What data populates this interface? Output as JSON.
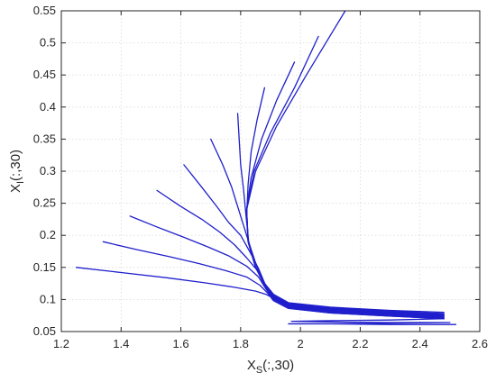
{
  "chart_data": {
    "type": "line",
    "xlabel": {
      "main": "X",
      "sub": "S",
      "suffix": "(:,30)"
    },
    "ylabel": {
      "main": "X",
      "sub": "I",
      "suffix": "(:,30)"
    },
    "xlim": [
      1.2,
      2.6
    ],
    "ylim": [
      0.05,
      0.55
    ],
    "xticks": [
      1.2,
      1.4,
      1.6,
      1.8,
      2,
      2.2,
      2.4,
      2.6
    ],
    "yticks": [
      0.05,
      0.1,
      0.15,
      0.2,
      0.25,
      0.3,
      0.35,
      0.4,
      0.45,
      0.5,
      0.55
    ],
    "xtick_labels": [
      "1.2",
      "1.4",
      "1.6",
      "1.8",
      "2",
      "2.2",
      "2.4",
      "2.6"
    ],
    "ytick_labels": [
      "0.05",
      "0.1",
      "0.15",
      "0.2",
      "0.25",
      "0.3",
      "0.35",
      "0.4",
      "0.45",
      "0.5",
      "0.55"
    ],
    "grid": true,
    "line_color": "#1f1fcc",
    "series": [
      {
        "x": [
          2.15,
          2.02,
          1.92,
          1.85,
          1.82,
          1.825,
          1.85,
          1.88,
          1.91,
          1.96,
          2.1,
          2.3,
          2.48
        ],
        "y": [
          0.55,
          0.45,
          0.37,
          0.3,
          0.24,
          0.19,
          0.15,
          0.125,
          0.108,
          0.095,
          0.088,
          0.083,
          0.08
        ]
      },
      {
        "x": [
          2.06,
          1.98,
          1.9,
          1.845,
          1.82,
          1.825,
          1.85,
          1.88,
          1.91,
          1.96,
          2.1,
          2.3,
          2.48
        ],
        "y": [
          0.51,
          0.43,
          0.36,
          0.3,
          0.24,
          0.19,
          0.15,
          0.125,
          0.107,
          0.094,
          0.087,
          0.082,
          0.078
        ]
      },
      {
        "x": [
          1.98,
          1.92,
          1.87,
          1.835,
          1.82,
          1.825,
          1.85,
          1.88,
          1.91,
          1.96,
          2.1,
          2.3,
          2.48
        ],
        "y": [
          0.47,
          0.41,
          0.35,
          0.29,
          0.24,
          0.19,
          0.15,
          0.124,
          0.106,
          0.093,
          0.086,
          0.081,
          0.077
        ]
      },
      {
        "x": [
          1.88,
          1.855,
          1.835,
          1.825,
          1.82,
          1.825,
          1.85,
          1.88,
          1.91,
          1.96,
          2.1,
          2.3,
          2.48
        ],
        "y": [
          0.43,
          0.38,
          0.33,
          0.28,
          0.23,
          0.19,
          0.15,
          0.123,
          0.105,
          0.092,
          0.085,
          0.08,
          0.076
        ]
      },
      {
        "x": [
          1.79,
          1.795,
          1.8,
          1.81,
          1.818,
          1.827,
          1.85,
          1.88,
          1.91,
          1.96,
          2.1,
          2.3,
          2.48
        ],
        "y": [
          0.39,
          0.35,
          0.31,
          0.27,
          0.23,
          0.19,
          0.15,
          0.122,
          0.104,
          0.091,
          0.084,
          0.079,
          0.075
        ]
      },
      {
        "x": [
          1.7,
          1.74,
          1.77,
          1.79,
          1.81,
          1.83,
          1.855,
          1.88,
          1.91,
          1.96,
          2.1,
          2.3,
          2.48
        ],
        "y": [
          0.35,
          0.31,
          0.275,
          0.245,
          0.215,
          0.185,
          0.15,
          0.121,
          0.103,
          0.09,
          0.083,
          0.078,
          0.074
        ]
      },
      {
        "x": [
          1.61,
          1.67,
          1.72,
          1.76,
          1.8,
          1.83,
          1.86,
          1.885,
          1.91,
          1.96,
          2.1,
          2.3,
          2.48
        ],
        "y": [
          0.31,
          0.275,
          0.245,
          0.22,
          0.2,
          0.175,
          0.148,
          0.12,
          0.102,
          0.089,
          0.082,
          0.077,
          0.073
        ]
      },
      {
        "x": [
          1.52,
          1.6,
          1.67,
          1.73,
          1.78,
          1.82,
          1.86,
          1.885,
          1.91,
          1.96,
          2.1,
          2.3,
          2.48
        ],
        "y": [
          0.27,
          0.245,
          0.225,
          0.205,
          0.185,
          0.165,
          0.143,
          0.118,
          0.101,
          0.088,
          0.081,
          0.076,
          0.072
        ]
      },
      {
        "x": [
          1.43,
          1.52,
          1.61,
          1.69,
          1.76,
          1.82,
          1.86,
          1.885,
          1.91,
          1.96,
          2.1,
          2.3,
          2.48
        ],
        "y": [
          0.23,
          0.213,
          0.197,
          0.182,
          0.168,
          0.152,
          0.135,
          0.116,
          0.1,
          0.087,
          0.08,
          0.075,
          0.071
        ]
      },
      {
        "x": [
          1.34,
          1.45,
          1.56,
          1.66,
          1.75,
          1.82,
          1.865,
          1.89,
          1.91,
          1.96,
          2.1,
          2.3,
          2.48
        ],
        "y": [
          0.19,
          0.178,
          0.167,
          0.156,
          0.145,
          0.135,
          0.122,
          0.11,
          0.098,
          0.086,
          0.079,
          0.074,
          0.07
        ]
      },
      {
        "x": [
          1.25,
          1.4,
          1.55,
          1.68,
          1.78,
          1.85,
          1.885,
          1.905,
          1.93,
          1.97,
          2.1,
          2.3,
          2.48
        ],
        "y": [
          0.15,
          0.142,
          0.134,
          0.126,
          0.119,
          0.113,
          0.108,
          0.103,
          0.095,
          0.086,
          0.079,
          0.074,
          0.07
        ]
      },
      {
        "x": [
          2.48,
          2.3,
          2.1,
          1.97,
          2.1,
          2.3,
          2.5,
          2.3,
          2.1,
          1.96,
          2.1,
          2.3,
          2.52
        ],
        "y": [
          0.07,
          0.068,
          0.067,
          0.066,
          0.065,
          0.064,
          0.064,
          0.063,
          0.062,
          0.062,
          0.062,
          0.061,
          0.061
        ]
      }
    ]
  }
}
